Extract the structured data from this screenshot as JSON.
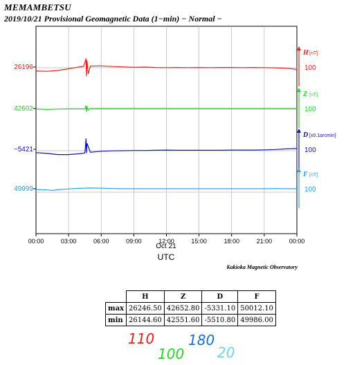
{
  "title": {
    "station": "MEMAMBETSU",
    "subtitle": "2019/10/21  Provisional Geomagnetic Data (1−min)  − Normal −"
  },
  "credit": "Kakioka Magnetic Observatory",
  "colors": {
    "H": "#e8201c",
    "Z": "#28d428",
    "D": "#1010c8",
    "F": "#2ba0f0",
    "axis": "#000000"
  },
  "chart_data": {
    "type": "line",
    "xlabel": "UTC",
    "date_label": "Oct 21",
    "x_ticks": [
      "00:00",
      "03:00",
      "06:00",
      "09:00",
      "12:00",
      "15:00",
      "18:00",
      "21:00",
      "00:00"
    ],
    "xlim": [
      0,
      24
    ],
    "left_labels": [
      {
        "comp": "H",
        "text": "26196"
      },
      {
        "comp": "Z",
        "text": "42602"
      },
      {
        "comp": "D",
        "text": "−5421"
      },
      {
        "comp": "F",
        "text": "49999"
      }
    ],
    "series": [
      {
        "name": "H",
        "unit": "[nT]",
        "scale": "100",
        "center": 26196,
        "points": [
          [
            0,
            26176
          ],
          [
            1,
            26174
          ],
          [
            2,
            26178
          ],
          [
            3,
            26187
          ],
          [
            4,
            26197
          ],
          [
            4.4,
            26200
          ],
          [
            4.6,
            26240
          ],
          [
            4.65,
            26150
          ],
          [
            4.7,
            26230
          ],
          [
            4.8,
            26160
          ],
          [
            5,
            26201
          ],
          [
            6,
            26202
          ],
          [
            7,
            26199
          ],
          [
            8,
            26197
          ],
          [
            9,
            26195
          ],
          [
            10,
            26196
          ],
          [
            11,
            26194
          ],
          [
            12,
            26193
          ],
          [
            13,
            26194
          ],
          [
            14,
            26193
          ],
          [
            15,
            26194
          ],
          [
            16,
            26193
          ],
          [
            17,
            26194
          ],
          [
            18,
            26194
          ],
          [
            19,
            26193
          ],
          [
            20,
            26194
          ],
          [
            21,
            26193
          ],
          [
            22,
            26192
          ],
          [
            23,
            26190
          ],
          [
            24,
            26184
          ]
        ]
      },
      {
        "name": "Z",
        "unit": "[nT]",
        "scale": "100",
        "center": 42602,
        "points": [
          [
            0,
            42600
          ],
          [
            1,
            42597
          ],
          [
            2,
            42599
          ],
          [
            3,
            42601
          ],
          [
            4,
            42601
          ],
          [
            4.5,
            42600
          ],
          [
            4.6,
            42618
          ],
          [
            4.65,
            42585
          ],
          [
            4.7,
            42612
          ],
          [
            4.8,
            42594
          ],
          [
            5,
            42602
          ],
          [
            6,
            42602
          ],
          [
            9,
            42602
          ],
          [
            12,
            42602
          ],
          [
            15,
            42602
          ],
          [
            18,
            42602
          ],
          [
            21,
            42602
          ],
          [
            24,
            42602
          ]
        ]
      },
      {
        "name": "D",
        "unit": "[x0.1arcmin]",
        "scale": "100",
        "center": -5421,
        "points": [
          [
            0,
            -5438
          ],
          [
            1,
            -5442
          ],
          [
            2,
            -5448
          ],
          [
            3,
            -5448
          ],
          [
            4,
            -5444
          ],
          [
            4.5,
            -5440
          ],
          [
            4.6,
            -5365
          ],
          [
            4.65,
            -5440
          ],
          [
            4.7,
            -5390
          ],
          [
            5,
            -5436
          ],
          [
            6,
            -5431
          ],
          [
            7,
            -5429
          ],
          [
            8,
            -5428
          ],
          [
            9,
            -5427
          ],
          [
            10,
            -5427
          ],
          [
            11,
            -5426
          ],
          [
            12,
            -5425
          ],
          [
            13,
            -5426
          ],
          [
            14,
            -5426
          ],
          [
            15,
            -5426
          ],
          [
            16,
            -5426
          ],
          [
            17,
            -5426
          ],
          [
            18,
            -5425
          ],
          [
            19,
            -5425
          ],
          [
            20,
            -5425
          ],
          [
            21,
            -5424
          ],
          [
            22,
            -5422
          ],
          [
            23,
            -5419
          ],
          [
            24,
            -5417
          ]
        ]
      },
      {
        "name": "F",
        "unit": "[nT]",
        "scale": "100",
        "center": 49999,
        "points": [
          [
            0,
            49995
          ],
          [
            1,
            49993
          ],
          [
            1.5,
            49990
          ],
          [
            2,
            49994
          ],
          [
            3,
            49998
          ],
          [
            4,
            50001
          ],
          [
            4.5,
            50002
          ],
          [
            5,
            50003
          ],
          [
            6,
            50002
          ],
          [
            7,
            50000
          ],
          [
            8,
            49999
          ],
          [
            9,
            49999
          ],
          [
            10,
            49999
          ],
          [
            12,
            49999
          ],
          [
            15,
            49999
          ],
          [
            18,
            49999
          ],
          [
            20,
            49999
          ],
          [
            21,
            49999
          ],
          [
            22,
            50000
          ],
          [
            23,
            49999
          ],
          [
            24,
            49999
          ]
        ]
      }
    ]
  },
  "table": {
    "headers": [
      "",
      "H",
      "Z",
      "D",
      "F"
    ],
    "rows": [
      [
        "max",
        "26246.50",
        "42652.80",
        "-5331.10",
        "50012.10"
      ],
      [
        "min",
        "26144.60",
        "42551.60",
        "-5510.80",
        "49986.00"
      ]
    ]
  },
  "annotations": {
    "h": "110",
    "z": "100",
    "d": "180",
    "f": "20"
  }
}
